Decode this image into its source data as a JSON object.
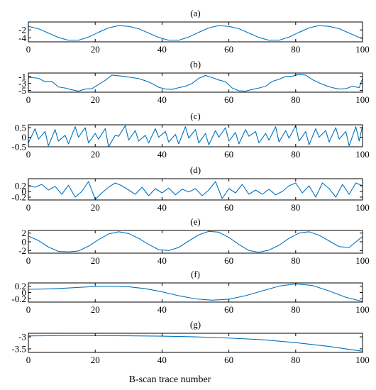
{
  "chart_data": [
    {
      "id": "a",
      "type": "line",
      "title": "(a)",
      "xlim": [
        0,
        100
      ],
      "ylim": [
        -5,
        0
      ],
      "x_ticks": [
        0,
        20,
        40,
        60,
        80,
        100
      ],
      "y_ticks": [
        -2,
        -4
      ],
      "series": [
        {
          "color": "#0072BD",
          "x": [
            0,
            3,
            6,
            9,
            12,
            15,
            18,
            21,
            24,
            27,
            30,
            33,
            36,
            39,
            42,
            45,
            48,
            51,
            54,
            57,
            60,
            63,
            66,
            69,
            72,
            75,
            78,
            81,
            84,
            87,
            90,
            93,
            96,
            99,
            100
          ],
          "y": [
            -1.1,
            -1.7,
            -2.8,
            -3.9,
            -4.6,
            -4.6,
            -3.8,
            -2.6,
            -1.5,
            -0.9,
            -1.1,
            -1.7,
            -2.8,
            -3.9,
            -4.6,
            -4.6,
            -3.8,
            -2.6,
            -1.5,
            -0.9,
            -1.1,
            -1.7,
            -2.8,
            -3.9,
            -4.6,
            -4.6,
            -3.8,
            -2.6,
            -1.5,
            -0.9,
            -1.1,
            -1.7,
            -2.8,
            -3.9,
            -4.2
          ]
        }
      ]
    },
    {
      "id": "b",
      "type": "line",
      "title": "(b)",
      "xlim": [
        0,
        100
      ],
      "ylim": [
        -5.5,
        0
      ],
      "x_ticks": [
        0,
        20,
        40,
        60,
        80,
        100
      ],
      "y_ticks": [
        -1,
        -3,
        -5
      ],
      "series": [
        {
          "color": "#0072BD",
          "x": [
            0,
            3,
            5,
            7,
            9,
            11,
            13,
            15,
            17,
            19,
            21,
            23,
            25,
            27,
            29,
            31,
            33,
            35,
            37,
            39,
            41,
            43,
            45,
            47,
            49,
            51,
            53,
            55,
            57,
            59,
            61,
            63,
            65,
            67,
            69,
            71,
            73,
            75,
            77,
            79,
            81,
            83,
            85,
            87,
            89,
            91,
            93,
            95,
            97,
            99,
            100
          ],
          "y": [
            -1.2,
            -1.5,
            -2.5,
            -2.4,
            -4.0,
            -4.3,
            -4.8,
            -5.2,
            -4.6,
            -4.5,
            -3.3,
            -2.1,
            -0.6,
            -0.8,
            -1.0,
            -1.3,
            -1.6,
            -2.2,
            -3.0,
            -4.1,
            -4.6,
            -4.7,
            -4.2,
            -3.8,
            -3.0,
            -1.5,
            -0.7,
            -1.3,
            -2.0,
            -2.5,
            -4.3,
            -5.1,
            -5.2,
            -4.7,
            -4.3,
            -3.8,
            -2.4,
            -1.8,
            -1.0,
            -0.9,
            -0.4,
            -0.6,
            -1.9,
            -2.8,
            -3.6,
            -4.2,
            -4.6,
            -4.5,
            -3.8,
            -4.2,
            -1.6
          ]
        }
      ]
    },
    {
      "id": "c",
      "type": "line",
      "title": "(c)",
      "xlim": [
        0,
        100
      ],
      "ylim": [
        -0.5,
        0.65
      ],
      "x_ticks": [
        0,
        20,
        40,
        60,
        80,
        100
      ],
      "y_ticks": [
        0.5,
        0,
        -0.5
      ],
      "series": [
        {
          "color": "#0072BD",
          "x": [
            0,
            2,
            3,
            5,
            6,
            8,
            9,
            11,
            12,
            14,
            15,
            17,
            18,
            20,
            21,
            23,
            24,
            26,
            27,
            29,
            30,
            32,
            33,
            35,
            36,
            38,
            39,
            41,
            42,
            44,
            45,
            47,
            48,
            50,
            51,
            53,
            54,
            56,
            57,
            59,
            60,
            62,
            63,
            65,
            66,
            68,
            69,
            71,
            72,
            74,
            75,
            77,
            78,
            80,
            81,
            83,
            84,
            86,
            87,
            89,
            90,
            92,
            93,
            95,
            96,
            98,
            99,
            100
          ],
          "y": [
            -0.3,
            0.45,
            -0.1,
            0.3,
            -0.45,
            0.4,
            -0.2,
            0.1,
            -0.35,
            0.55,
            0.0,
            0.5,
            -0.3,
            0.2,
            -0.1,
            0.45,
            -0.5,
            0.1,
            0.05,
            0.6,
            -0.15,
            0.35,
            -0.2,
            0.1,
            -0.3,
            0.45,
            0.0,
            0.3,
            -0.25,
            0.15,
            -0.35,
            0.55,
            -0.05,
            0.4,
            -0.3,
            0.2,
            -0.4,
            0.35,
            0.0,
            0.5,
            -0.2,
            0.25,
            -0.35,
            0.4,
            0.05,
            0.3,
            -0.3,
            0.2,
            -0.15,
            0.55,
            -0.25,
            0.35,
            -0.05,
            0.6,
            -0.2,
            0.3,
            -0.4,
            0.45,
            0.0,
            0.35,
            -0.25,
            0.5,
            -0.1,
            0.3,
            -0.45,
            0.55,
            -0.2,
            0.6
          ]
        }
      ]
    },
    {
      "id": "d",
      "type": "line",
      "title": "(d)",
      "xlim": [
        0,
        100
      ],
      "ylim": [
        -0.3,
        0.45
      ],
      "x_ticks": [
        0,
        20,
        40,
        60,
        80,
        100
      ],
      "y_ticks": [
        0.2,
        0,
        -0.2
      ],
      "series": [
        {
          "color": "#0072BD",
          "x": [
            0,
            2,
            4,
            6,
            8,
            10,
            12,
            14,
            16,
            18,
            20,
            22,
            24,
            26,
            28,
            30,
            32,
            34,
            36,
            38,
            40,
            42,
            44,
            46,
            48,
            50,
            52,
            54,
            56,
            58,
            60,
            62,
            64,
            66,
            68,
            70,
            72,
            74,
            76,
            78,
            80,
            82,
            84,
            86,
            88,
            90,
            92,
            94,
            96,
            98,
            100
          ],
          "y": [
            0.2,
            0.15,
            0.25,
            0.05,
            0.18,
            -0.1,
            0.22,
            -0.2,
            0.0,
            0.35,
            -0.28,
            -0.05,
            0.15,
            0.3,
            0.2,
            0.05,
            -0.1,
            0.15,
            -0.15,
            0.1,
            -0.05,
            0.12,
            -0.12,
            0.08,
            -0.02,
            0.1,
            -0.15,
            0.05,
            0.35,
            -0.25,
            0.1,
            -0.05,
            0.25,
            -0.1,
            0.05,
            -0.1,
            0.08,
            -0.12,
            0.0,
            0.2,
            0.3,
            -0.05,
            0.2,
            -0.2,
            0.3,
            0.1,
            -0.2,
            0.25,
            -0.1,
            0.3,
            0.2
          ]
        }
      ]
    },
    {
      "id": "e",
      "type": "line",
      "title": "(e)",
      "xlim": [
        0,
        100
      ],
      "ylim": [
        -2.6,
        2.6
      ],
      "x_ticks": [
        0,
        20,
        40,
        60,
        80,
        100
      ],
      "y_ticks": [
        2,
        0,
        -2
      ],
      "series": [
        {
          "color": "#0072BD",
          "x": [
            0,
            3,
            6,
            9,
            12,
            15,
            18,
            21,
            24,
            27,
            30,
            33,
            36,
            39,
            42,
            45,
            48,
            51,
            54,
            57,
            60,
            63,
            66,
            69,
            72,
            75,
            78,
            81,
            84,
            87,
            90,
            93,
            96,
            99,
            100
          ],
          "y": [
            1.3,
            0.3,
            -1.2,
            -2.2,
            -2.3,
            -2.1,
            -1.0,
            0.5,
            1.8,
            2.3,
            1.9,
            0.8,
            -0.6,
            -1.8,
            -2.0,
            -1.3,
            0.2,
            1.6,
            2.4,
            2.2,
            1.0,
            -0.6,
            -2.0,
            -2.4,
            -1.9,
            -0.8,
            0.8,
            2.0,
            2.3,
            1.5,
            0.2,
            -1.1,
            -1.3,
            0.6,
            1.2
          ]
        }
      ]
    },
    {
      "id": "f",
      "type": "line",
      "title": "(f)",
      "xlim": [
        0,
        100
      ],
      "ylim": [
        -0.3,
        0.3
      ],
      "x_ticks": [
        0,
        20,
        40,
        60,
        80,
        100
      ],
      "y_ticks": [
        0.2,
        0,
        -0.2
      ],
      "series": [
        {
          "color": "#0072BD",
          "x": [
            0,
            5,
            10,
            15,
            20,
            25,
            30,
            35,
            40,
            45,
            50,
            55,
            60,
            65,
            70,
            75,
            80,
            85,
            90,
            95,
            100
          ],
          "y": [
            0.1,
            0.11,
            0.13,
            0.16,
            0.19,
            0.2,
            0.18,
            0.12,
            0.02,
            -0.1,
            -0.2,
            -0.24,
            -0.21,
            -0.1,
            0.05,
            0.2,
            0.27,
            0.22,
            0.05,
            -0.15,
            -0.28
          ]
        }
      ]
    },
    {
      "id": "g",
      "type": "line",
      "title": "(g)",
      "xlim": [
        0,
        100
      ],
      "ylim": [
        -3.65,
        -2.85
      ],
      "x_ticks": [
        0,
        20,
        40,
        60,
        80,
        100
      ],
      "y_ticks": [
        -3,
        -3.5
      ],
      "xlabel": "B-scan trace number",
      "series": [
        {
          "color": "#0072BD",
          "x": [
            0,
            10,
            20,
            30,
            40,
            50,
            60,
            70,
            80,
            90,
            100
          ],
          "y": [
            -2.96,
            -2.95,
            -2.95,
            -2.955,
            -2.97,
            -3.0,
            -3.05,
            -3.12,
            -3.24,
            -3.4,
            -3.6
          ]
        }
      ]
    }
  ]
}
